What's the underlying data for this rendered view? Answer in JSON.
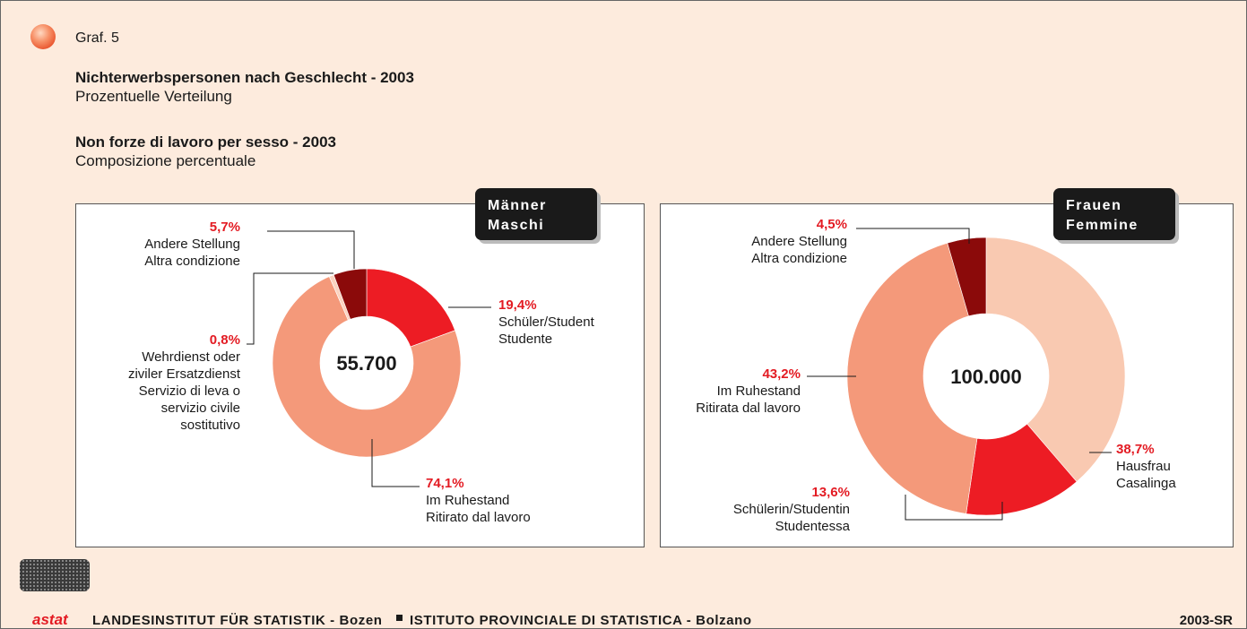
{
  "header": {
    "graph_number": "Graf. 5",
    "title_de": "Nichterwerbspersonen nach Geschlecht - 2003",
    "subtitle_de": "Prozentuelle Verteilung",
    "title_it": "Non forze di lavoro per sesso - 2003",
    "subtitle_it": "Composizione percentuale"
  },
  "chart_data": [
    {
      "type": "donut",
      "title": [
        "Männer",
        "Maschi"
      ],
      "center_label": "55.700",
      "categories": [
        [
          "Schüler/Student",
          "Studente"
        ],
        [
          "Im Ruhestand",
          "Ritirato dal lavoro"
        ],
        [
          "Wehrdienst oder",
          "ziviler Ersatzdienst",
          "Servizio di leva o",
          "servizio civile",
          "sostitutivo"
        ],
        [
          "Andere Stellung",
          "Altra condizione"
        ]
      ],
      "values": [
        19.4,
        74.1,
        0.8,
        5.7
      ],
      "value_labels": [
        "19,4%",
        "74,1%",
        "0,8%",
        "5,7%"
      ],
      "colors": [
        "#ed1c24",
        "#f4997a",
        "#fbd3c0",
        "#8b0a0a"
      ]
    },
    {
      "type": "donut",
      "title": [
        "Frauen",
        "Femmine"
      ],
      "center_label": "100.000",
      "categories": [
        [
          "Hausfrau",
          "Casalinga"
        ],
        [
          "Schülerin/Studentin",
          "Studentessa"
        ],
        [
          "Im Ruhestand",
          "Ritirata dal lavoro"
        ],
        [
          "Andere Stellung",
          "Altra condizione"
        ]
      ],
      "values": [
        38.7,
        13.6,
        43.2,
        4.5
      ],
      "value_labels": [
        "38,7%",
        "13,6%",
        "43,2%",
        "4,5%"
      ],
      "colors": [
        "#f9c9b1",
        "#ed1c24",
        "#f4997a",
        "#8b0a0a"
      ]
    }
  ],
  "footer": {
    "logo": "astat",
    "institute_de": "LANDESINSTITUT FÜR STATISTIK - Bozen",
    "institute_it": "ISTITUTO PROVINCIALE DI STATISTICA - Bolzano",
    "code": "2003-SR"
  }
}
